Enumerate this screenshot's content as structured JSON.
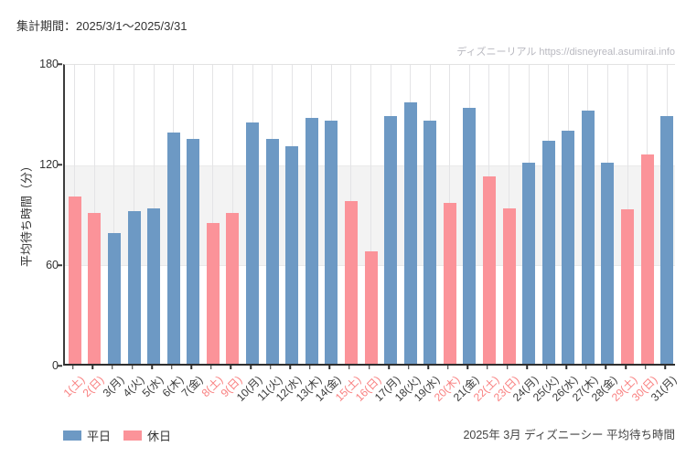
{
  "header": {
    "period_label": "集計期間：2025/3/1～2025/3/31"
  },
  "watermark": {
    "text": "ディズニーリアル https://disneyreal.asumirai.info"
  },
  "footer": {
    "caption": "2025年 3月 ディズニーシー 平均待ち時間"
  },
  "legend": {
    "weekday_label": "平日",
    "holiday_label": "休日"
  },
  "colors": {
    "weekday_bar": "#6d99c4",
    "holiday_bar": "#fb9399",
    "holiday_label_text": "#f98080",
    "shaded_band": "#f3f3f3",
    "gridline": "#e4e4e6",
    "watermark_text": "#b9b9c0"
  },
  "chart_data": {
    "type": "bar",
    "title": "2025年 3月 ディズニーシー 平均待ち時間",
    "xlabel": "",
    "ylabel": "平均待ち時間（分）",
    "ylim": [
      0,
      180
    ],
    "yticks": [
      0,
      60,
      120,
      180
    ],
    "shaded_band_y": [
      60,
      120
    ],
    "grid": "vertical category gridlines",
    "legend_position": "bottom-left",
    "legend_entries": [
      "平日",
      "休日"
    ],
    "categories": [
      "1(土)",
      "2(日)",
      "3(月)",
      "4(火)",
      "5(水)",
      "6(木)",
      "7(金)",
      "8(土)",
      "9(日)",
      "10(月)",
      "11(火)",
      "12(水)",
      "13(木)",
      "14(金)",
      "15(土)",
      "16(日)",
      "17(月)",
      "18(火)",
      "19(水)",
      "20(木)",
      "21(金)",
      "22(土)",
      "23(日)",
      "24(月)",
      "25(火)",
      "26(水)",
      "27(木)",
      "28(金)",
      "29(土)",
      "30(日)",
      "31(月)"
    ],
    "values": [
      100,
      90,
      78,
      91,
      93,
      138,
      134,
      84,
      90,
      144,
      134,
      130,
      147,
      145,
      97,
      67,
      148,
      156,
      145,
      96,
      153,
      112,
      93,
      120,
      133,
      139,
      151,
      120,
      92,
      125,
      148
    ],
    "day_type": [
      "holiday",
      "holiday",
      "weekday",
      "weekday",
      "weekday",
      "weekday",
      "weekday",
      "holiday",
      "holiday",
      "weekday",
      "weekday",
      "weekday",
      "weekday",
      "weekday",
      "holiday",
      "holiday",
      "weekday",
      "weekday",
      "weekday",
      "holiday",
      "weekday",
      "holiday",
      "holiday",
      "weekday",
      "weekday",
      "weekday",
      "weekday",
      "weekday",
      "holiday",
      "holiday",
      "weekday"
    ]
  }
}
